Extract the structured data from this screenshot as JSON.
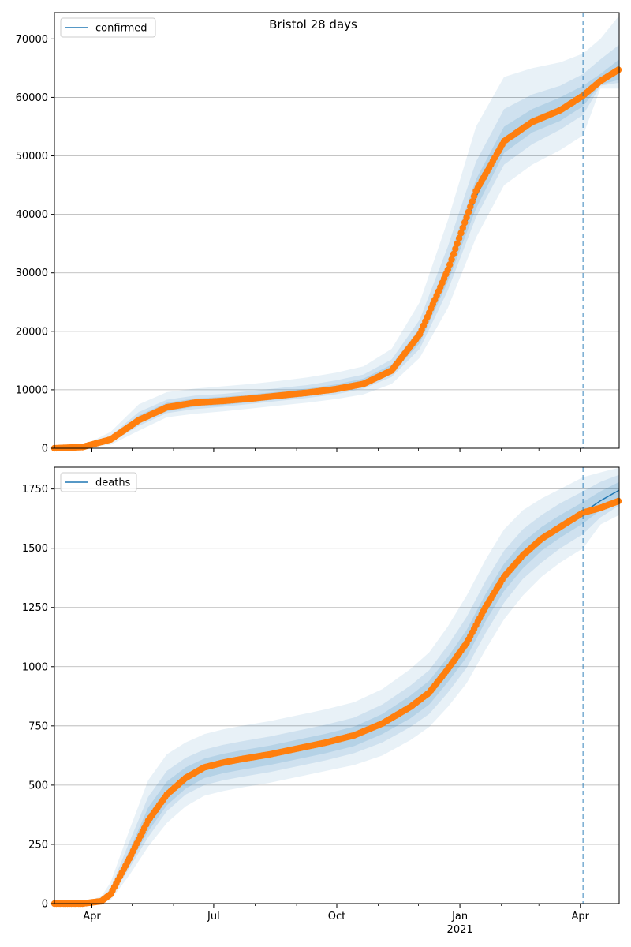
{
  "figure": {
    "title": "Bristol 28 days"
  },
  "x_axis": {
    "tick_labels": [
      "Apr",
      "Jul",
      "Oct",
      "Jan",
      "Apr"
    ],
    "tick_dates": [
      "2020-04-01",
      "2020-07-01",
      "2020-10-01",
      "2021-01-01",
      "2021-04-01"
    ],
    "year_label": "2021",
    "range": [
      "2020-03-04",
      "2021-04-30"
    ],
    "forecast_start": "2021-04-03"
  },
  "colors": {
    "model_line": "#1f77b4",
    "observed_points": "#ff7f0e",
    "band": "#1f77b4",
    "grid": "#b0b0b0",
    "forecast_marker": "#1f77b4"
  },
  "chart_data": [
    {
      "type": "line",
      "panel": "confirmed",
      "legend": [
        "confirmed"
      ],
      "legend_position": "top-left",
      "grid": true,
      "ylim": [
        0,
        74500
      ],
      "yticks": [
        0,
        10000,
        20000,
        30000,
        40000,
        50000,
        60000,
        70000
      ],
      "x": [
        "2020-03-04",
        "2020-03-25",
        "2020-04-15",
        "2020-05-06",
        "2020-05-27",
        "2020-06-17",
        "2020-07-08",
        "2020-07-29",
        "2020-08-19",
        "2020-09-09",
        "2020-09-30",
        "2020-10-21",
        "2020-11-11",
        "2020-12-02",
        "2020-12-23",
        "2021-01-13",
        "2021-02-03",
        "2021-02-24",
        "2021-03-17",
        "2021-04-03",
        "2021-04-16",
        "2021-04-30"
      ],
      "series": [
        {
          "name": "confirmed",
          "role": "model",
          "values": [
            0,
            200,
            1500,
            4800,
            7000,
            7800,
            8100,
            8500,
            9000,
            9500,
            10200,
            11200,
            13500,
            19000,
            30000,
            43000,
            52500,
            56000,
            58000,
            60500,
            62500,
            64500
          ]
        },
        {
          "role": "observed",
          "values": [
            0,
            200,
            1500,
            4800,
            7000,
            7800,
            8100,
            8500,
            9000,
            9500,
            10100,
            11000,
            13300,
            19500,
            30500,
            44000,
            52500,
            55800,
            57800,
            60300,
            62800,
            64800
          ]
        }
      ],
      "bands": {
        "outer_upper": [
          0,
          400,
          2800,
          7500,
          9600,
          10200,
          10600,
          11000,
          11500,
          12100,
          12900,
          14000,
          17000,
          25000,
          39000,
          55000,
          63500,
          65000,
          66000,
          67500,
          70000,
          74000
        ],
        "outer_lower": [
          0,
          100,
          600,
          3000,
          5300,
          5900,
          6300,
          6800,
          7300,
          7800,
          8400,
          9200,
          11000,
          15500,
          24000,
          36000,
          45000,
          48500,
          51000,
          53500,
          61500,
          61500
        ],
        "mid_upper": [
          0,
          300,
          2100,
          6200,
          8300,
          9000,
          9300,
          9800,
          10300,
          10800,
          11600,
          12600,
          15200,
          22000,
          34500,
          49000,
          58000,
          60500,
          62000,
          64000,
          66500,
          69000
        ],
        "mid_lower": [
          0,
          150,
          1000,
          3800,
          6000,
          6700,
          7100,
          7600,
          8100,
          8600,
          9200,
          10200,
          12200,
          17000,
          27000,
          39500,
          48500,
          52000,
          54500,
          57000,
          62000,
          62500
        ],
        "inner_upper": [
          0,
          250,
          1800,
          5600,
          7800,
          8500,
          8800,
          9200,
          9700,
          10200,
          10900,
          11900,
          14300,
          20500,
          32000,
          46000,
          55000,
          58000,
          60000,
          62000,
          64000,
          66500
        ],
        "inner_lower": [
          0,
          170,
          1200,
          4200,
          6300,
          7100,
          7400,
          7900,
          8400,
          8900,
          9600,
          10600,
          12700,
          18000,
          28500,
          41000,
          50500,
          54000,
          56000,
          58500,
          62200,
          63000
        ]
      }
    },
    {
      "type": "line",
      "panel": "deaths",
      "legend": [
        "deaths"
      ],
      "legend_position": "top-left",
      "grid": true,
      "ylim": [
        0,
        1842
      ],
      "yticks": [
        0,
        250,
        500,
        750,
        1000,
        1250,
        1500,
        1750
      ],
      "x": [
        "2020-03-04",
        "2020-03-25",
        "2020-04-08",
        "2020-04-15",
        "2020-04-29",
        "2020-05-13",
        "2020-05-27",
        "2020-06-10",
        "2020-06-24",
        "2020-07-08",
        "2020-07-22",
        "2020-08-12",
        "2020-09-02",
        "2020-09-23",
        "2020-10-14",
        "2020-11-04",
        "2020-11-25",
        "2020-12-09",
        "2020-12-23",
        "2021-01-06",
        "2021-01-20",
        "2021-02-03",
        "2021-02-17",
        "2021-03-03",
        "2021-03-17",
        "2021-04-03",
        "2021-04-16",
        "2021-04-30"
      ],
      "series": [
        {
          "name": "deaths",
          "role": "model",
          "values": [
            0,
            0,
            10,
            40,
            190,
            350,
            460,
            530,
            575,
            595,
            610,
            630,
            655,
            680,
            710,
            760,
            830,
            890,
            990,
            1100,
            1250,
            1380,
            1470,
            1540,
            1590,
            1650,
            1700,
            1745
          ]
        },
        {
          "role": "observed",
          "values": [
            0,
            0,
            10,
            40,
            190,
            350,
            460,
            530,
            575,
            595,
            610,
            630,
            655,
            680,
            710,
            760,
            830,
            890,
            990,
            1100,
            1250,
            1380,
            1470,
            1540,
            1590,
            1650,
            1670,
            1700
          ]
        }
      ],
      "bands": {
        "outer_upper": [
          0,
          5,
          30,
          90,
          310,
          520,
          630,
          680,
          715,
          735,
          750,
          770,
          795,
          820,
          850,
          905,
          990,
          1060,
          1170,
          1300,
          1450,
          1580,
          1660,
          1710,
          1750,
          1800,
          1820,
          1840
        ],
        "outer_lower": [
          0,
          0,
          2,
          15,
          120,
          240,
          340,
          410,
          455,
          475,
          490,
          510,
          535,
          560,
          585,
          625,
          690,
          745,
          830,
          930,
          1070,
          1200,
          1300,
          1380,
          1440,
          1500,
          1600,
          1640
        ],
        "mid_upper": [
          0,
          3,
          20,
          65,
          260,
          450,
          560,
          615,
          650,
          670,
          685,
          705,
          730,
          755,
          785,
          840,
          920,
          985,
          1090,
          1210,
          1360,
          1490,
          1580,
          1640,
          1690,
          1740,
          1780,
          1810
        ],
        "mid_lower": [
          0,
          0,
          5,
          25,
          150,
          280,
          390,
          460,
          500,
          520,
          535,
          555,
          580,
          605,
          635,
          680,
          745,
          800,
          890,
          995,
          1140,
          1270,
          1370,
          1440,
          1500,
          1560,
          1630,
          1680
        ],
        "inner_upper": [
          0,
          2,
          15,
          52,
          225,
          405,
          515,
          575,
          612,
          632,
          647,
          667,
          692,
          717,
          747,
          800,
          878,
          940,
          1040,
          1155,
          1305,
          1435,
          1525,
          1590,
          1640,
          1695,
          1740,
          1780
        ],
        "inner_lower": [
          0,
          0,
          7,
          30,
          165,
          305,
          415,
          485,
          530,
          550,
          565,
          585,
          610,
          635,
          665,
          715,
          782,
          840,
          935,
          1040,
          1190,
          1320,
          1415,
          1490,
          1545,
          1605,
          1660,
          1715
        ]
      }
    }
  ]
}
